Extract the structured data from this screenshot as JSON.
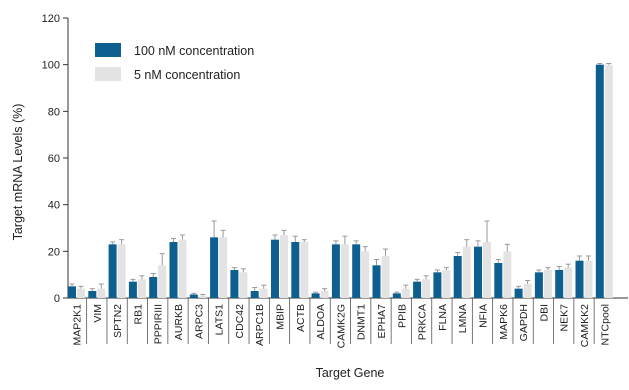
{
  "chart_data": {
    "type": "bar",
    "xlabel": "Target Gene",
    "ylabel": "Target mRNA Levels  (%)",
    "ylim": [
      0,
      120
    ],
    "yticks": [
      0,
      20,
      40,
      60,
      80,
      100,
      120
    ],
    "grid": false,
    "legend_placement": "top-left",
    "categories": [
      "MAP2K1",
      "VIM",
      "SPTN2",
      "RB1",
      "PPPIRIII",
      "AURKB",
      "ARPC3",
      "LATS1",
      "CDC42",
      "ARPC1B",
      "MBIP",
      "ACTB",
      "ALDOA",
      "CAMK2G",
      "DNMT1",
      "EPHA7",
      "PPIB",
      "PRKCA",
      "FLNA",
      "LMNA",
      "NFIA",
      "MAPK6",
      "GAPDH",
      "DBI",
      "NEK7",
      "CAMKK2",
      "NTCpool"
    ],
    "series": [
      {
        "name": "100 nM concentration",
        "color": "#0d5f8f",
        "values": [
          5,
          3,
          23,
          7,
          9,
          24,
          1.5,
          26,
          12,
          3,
          25,
          24,
          2,
          23,
          23,
          14,
          2,
          7,
          11,
          18,
          22,
          15,
          4,
          11,
          12,
          16,
          100
        ],
        "errors": [
          1,
          1,
          1,
          1,
          1.5,
          1.5,
          0.5,
          7,
          1,
          1.5,
          2,
          2.5,
          0.5,
          1.5,
          1.5,
          2.5,
          0.5,
          1,
          1,
          1.5,
          2.5,
          1.5,
          1,
          1,
          1.5,
          2,
          0.5
        ]
      },
      {
        "name": "5 nM concentration",
        "color": "#e3e3e3",
        "values": [
          4,
          4,
          23,
          8,
          14,
          25,
          1,
          26,
          11,
          4,
          27,
          24,
          3,
          23,
          20,
          18,
          4,
          8,
          12,
          22,
          24,
          20,
          6,
          12,
          13,
          16,
          100
        ],
        "errors": [
          1,
          2,
          2,
          1.5,
          5,
          2,
          0.5,
          3,
          1.5,
          1.5,
          2,
          1,
          1,
          3.5,
          2,
          3,
          1.5,
          1.5,
          1,
          3,
          9,
          3,
          1.5,
          1,
          1.5,
          2,
          0.5
        ]
      }
    ]
  }
}
